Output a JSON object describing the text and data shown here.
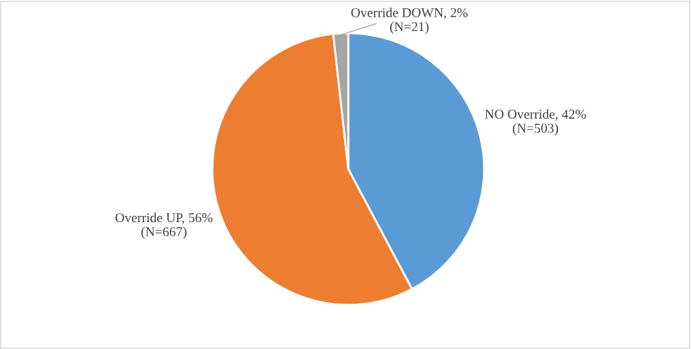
{
  "chart_data": {
    "type": "pie",
    "categories": [
      "NO Override",
      "Override UP",
      "Override DOWN"
    ],
    "values": [
      503,
      667,
      21
    ],
    "value_labels": [
      "42%\n(N=503)",
      "56%\n(N=667)",
      "2%\n(N=21)"
    ],
    "colors": [
      "#5b9bd5",
      "#ed7d31",
      "#a5a5a5"
    ],
    "legend": false
  }
}
